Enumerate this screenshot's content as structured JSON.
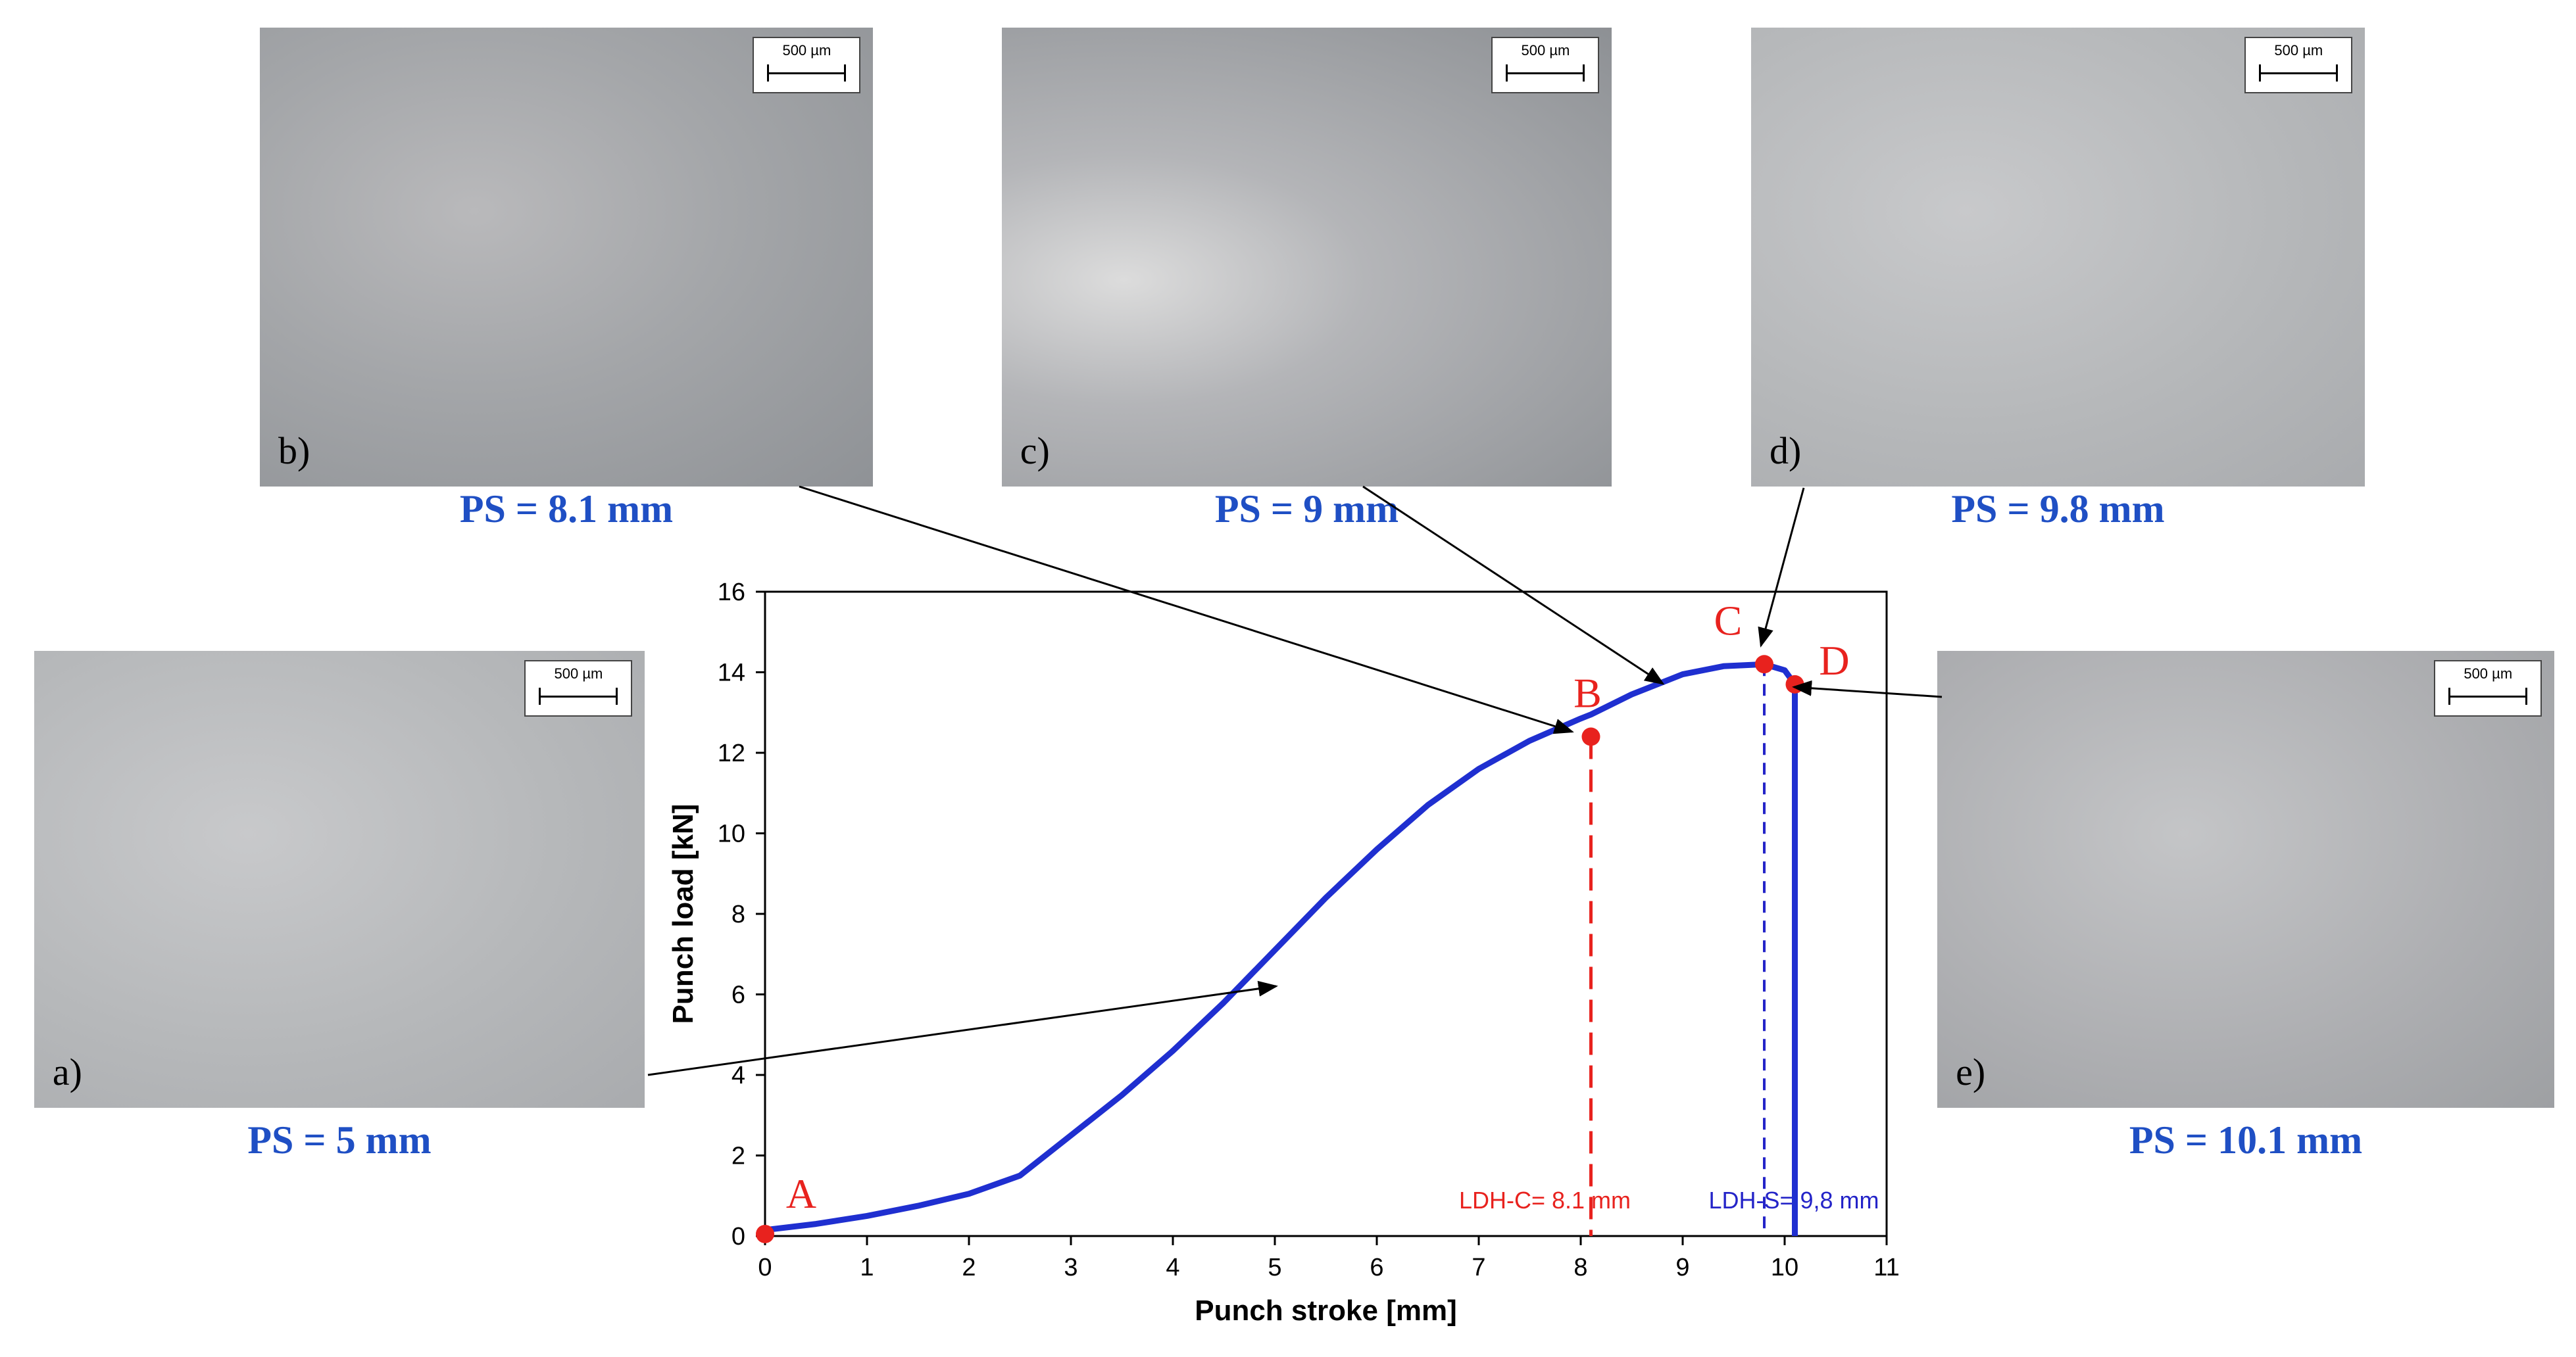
{
  "panels": [
    {
      "letter": "a)",
      "ps": "PS = 5 mm",
      "scale": "500 µm"
    },
    {
      "letter": "b)",
      "ps": "PS = 8.1 mm",
      "scale": "500 µm"
    },
    {
      "letter": "c)",
      "ps": "PS = 9 mm",
      "scale": "500 µm"
    },
    {
      "letter": "d)",
      "ps": "PS = 9.8 mm",
      "scale": "500 µm"
    },
    {
      "letter": "e)",
      "ps": "PS = 10.1 mm",
      "scale": "500 µm"
    }
  ],
  "chart_data": {
    "type": "line",
    "xlabel": "Punch stroke [mm]",
    "ylabel": "Punch load [kN]",
    "xlim": [
      0,
      11
    ],
    "ylim": [
      0,
      16
    ],
    "xticks": [
      0,
      1,
      2,
      3,
      4,
      5,
      6,
      7,
      8,
      9,
      10,
      11
    ],
    "yticks": [
      0,
      2,
      4,
      6,
      8,
      10,
      12,
      14,
      16
    ],
    "grid": false,
    "series": [
      {
        "color": "#1f2fd0",
        "x": [
          0,
          0.5,
          1.0,
          1.5,
          2.0,
          2.5,
          3.0,
          3.5,
          4.0,
          4.5,
          5.0,
          5.5,
          6.0,
          6.5,
          7.0,
          7.5,
          8.0,
          8.1,
          8.5,
          9.0,
          9.4,
          9.8,
          10.0,
          10.1,
          10.1
        ],
        "y": [
          0.15,
          0.3,
          0.5,
          0.75,
          1.05,
          1.5,
          2.5,
          3.5,
          4.6,
          5.8,
          7.1,
          8.4,
          9.6,
          10.7,
          11.6,
          12.3,
          12.85,
          12.95,
          13.45,
          13.95,
          14.15,
          14.2,
          14.05,
          13.7,
          0
        ]
      }
    ],
    "points": [
      {
        "label": "A",
        "x": 0,
        "y": 0.05,
        "color": "#e8221e"
      },
      {
        "label": "B",
        "x": 8.1,
        "y": 12.4,
        "color": "#e8221e"
      },
      {
        "label": "C",
        "x": 9.8,
        "y": 14.2,
        "color": "#e8221e"
      },
      {
        "label": "D",
        "x": 10.1,
        "y": 13.7,
        "color": "#e8221e"
      }
    ],
    "vlines": [
      {
        "x": 8.1,
        "color": "#e8221e",
        "label": "LDH-C= 8.1 mm"
      },
      {
        "x": 9.8,
        "color": "#2424c8",
        "label": "LDH-S= 9,8 mm"
      }
    ]
  }
}
